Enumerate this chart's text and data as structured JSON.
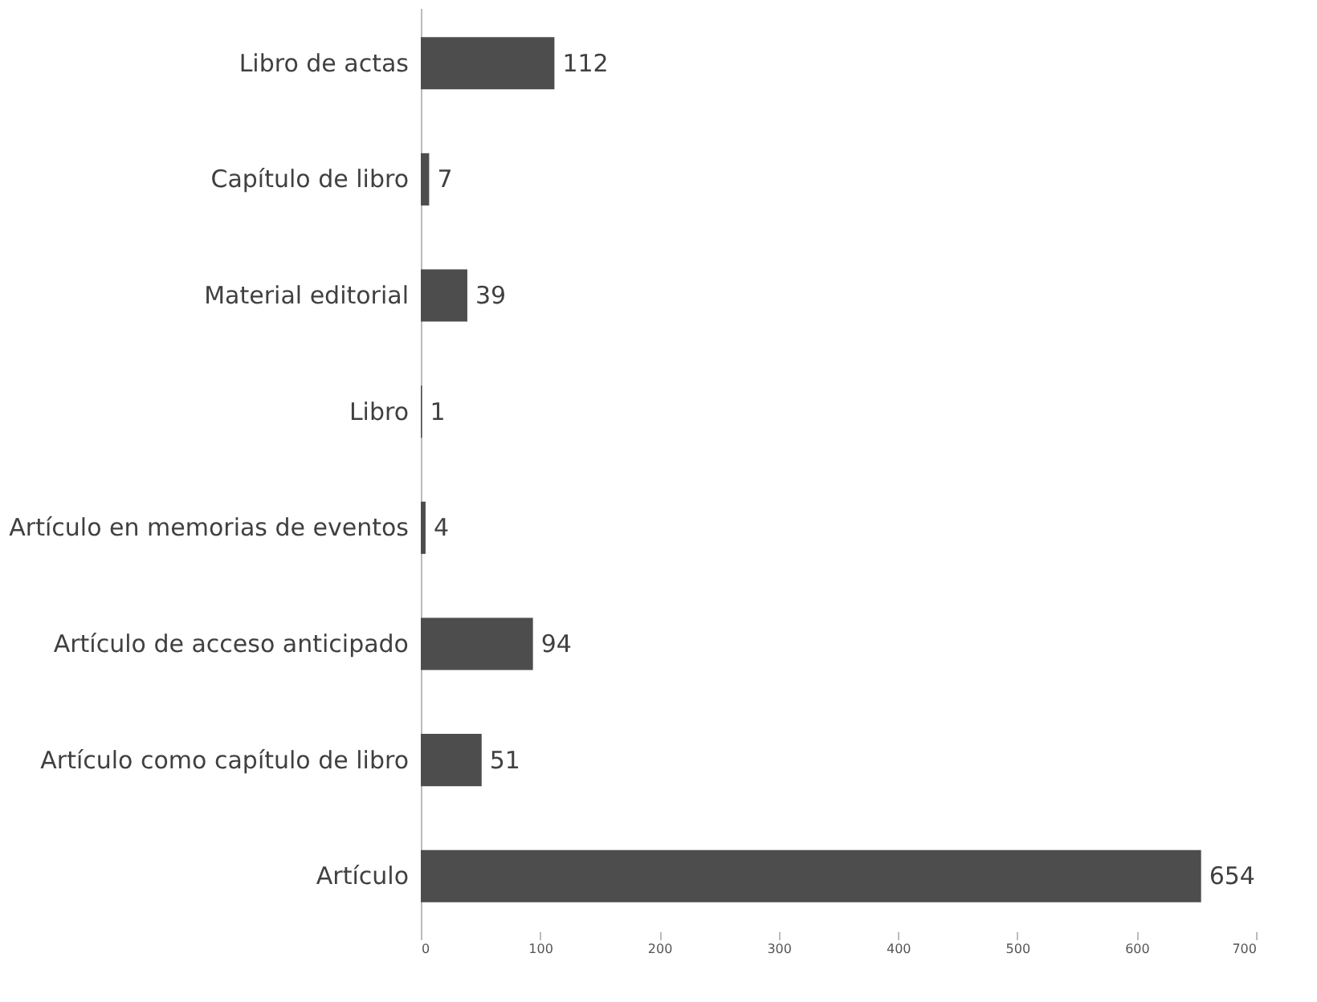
{
  "chart_data": {
    "type": "bar",
    "orientation": "horizontal",
    "categories": [
      "Libro de actas",
      "Capítulo de libro",
      "Material editorial",
      "Libro",
      "Artículo en memorias de eventos",
      "Artículo de acceso anticipado",
      "Artículo como capítulo de libro",
      "Artículo"
    ],
    "values": [
      112,
      7,
      39,
      1,
      4,
      94,
      51,
      654
    ],
    "color": "#4d4d4d",
    "xlim": [
      0,
      700
    ],
    "xticks": [
      0,
      100,
      200,
      300,
      400,
      500,
      600,
      700
    ],
    "data_labels": true
  }
}
